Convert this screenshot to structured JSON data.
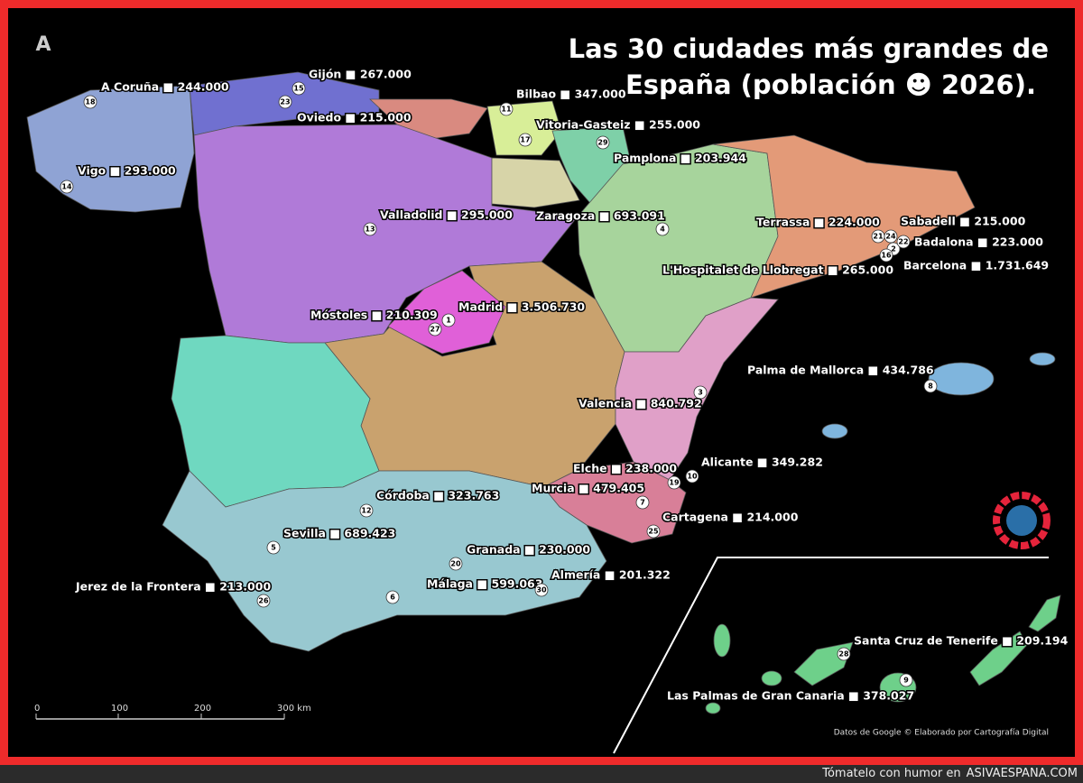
{
  "title": {
    "line1": "Las 30 ciudades más grandes de",
    "line2": "España (población ☻ 2026)."
  },
  "cities": [
    {
      "rank": 1,
      "label": "Madrid ■ 3.506.730"
    },
    {
      "rank": 2,
      "label": "Barcelona ■ 1.731.649"
    },
    {
      "rank": 3,
      "label": "Valencia ■ 840.792"
    },
    {
      "rank": 4,
      "label": "Zaragoza ■ 693.091"
    },
    {
      "rank": 5,
      "label": "Sevilla ■ 689.423"
    },
    {
      "rank": 6,
      "label": "Málaga ■ 599.063"
    },
    {
      "rank": 7,
      "label": "Murcia ■ 479.405"
    },
    {
      "rank": 8,
      "label": "Palma de Mallorca ■ 434.786"
    },
    {
      "rank": 9,
      "label": "Las Palmas de Gran Canaria ■ 378.027"
    },
    {
      "rank": 10,
      "label": "Alicante ■ 349.282"
    },
    {
      "rank": 11,
      "label": "Bilbao ■ 347.000"
    },
    {
      "rank": 12,
      "label": "Córdoba ■ 323.763"
    },
    {
      "rank": 13,
      "label": "Valladolid ■ 295.000"
    },
    {
      "rank": 14,
      "label": "Vigo ■ 293.000"
    },
    {
      "rank": 15,
      "label": "Gijón ■ 267.000"
    },
    {
      "rank": 16,
      "label": "L'Hospitalet de Llobregat ■ 265.000"
    },
    {
      "rank": 17,
      "label": "Vitoria-Gasteiz ■ 255.000"
    },
    {
      "rank": 18,
      "label": "A Coruña ■ 244.000"
    },
    {
      "rank": 19,
      "label": "Elche ■ 238.000"
    },
    {
      "rank": 20,
      "label": "Granada ■ 230.000"
    },
    {
      "rank": 21,
      "label": "Terrassa ■ 224.000"
    },
    {
      "rank": 22,
      "label": "Badalona ■ 223.000"
    },
    {
      "rank": 23,
      "label": "Oviedo ■ 215.000"
    },
    {
      "rank": 24,
      "label": "Sabadell ■ 215.000"
    },
    {
      "rank": 25,
      "label": "Cartagena ■ 214.000"
    },
    {
      "rank": 26,
      "label": "Jerez de la Frontera ■ 213.000"
    },
    {
      "rank": 27,
      "label": "Móstoles ■ 210.309"
    },
    {
      "rank": 28,
      "label": "Santa Cruz de Tenerife ■ 209.194"
    },
    {
      "rank": 29,
      "label": "Pamplona ■ 203.944"
    },
    {
      "rank": 30,
      "label": "Almería ■ 201.322"
    }
  ],
  "scale_bar": {
    "labels": [
      "0",
      "100",
      "200",
      "300 km"
    ]
  },
  "compass": "A",
  "credits": "Datos de Google © Elaborado por Cartografía Digital",
  "footer": {
    "prefix": "Tómatelo con humor en",
    "site": "ASIVAESPANA.COM"
  }
}
